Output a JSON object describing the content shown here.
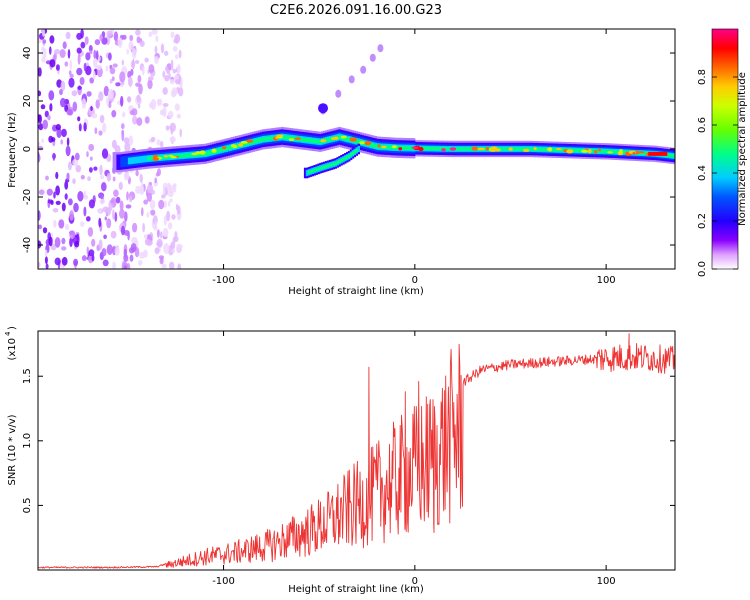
{
  "figure_title": "C2E6.2026.091.16.00.G23",
  "chart_data": [
    {
      "type": "heatmap",
      "title": "C2E6.2026.091.16.00.G23",
      "xlabel": "Height of straight line (km)",
      "ylabel": "Frequency (Hz)",
      "xlim": [
        -197,
        136
      ],
      "ylim": [
        -50,
        50
      ],
      "xticks": [
        -100,
        0,
        100
      ],
      "yticks": [
        -40,
        -20,
        0,
        20,
        40
      ],
      "xtick_labels": [
        "-100",
        "0",
        "100"
      ],
      "ytick_labels": [
        "-40",
        "-20",
        "0",
        "20",
        "40"
      ],
      "colorbar": {
        "label": "Normalized spectral amplitude",
        "range": [
          0,
          1
        ],
        "ticks": [
          0.0,
          0.2,
          0.4,
          0.6,
          0.8
        ],
        "tick_labels": [
          "0.0",
          "0.2",
          "0.4",
          "0.6",
          "0.8"
        ],
        "colormap": [
          "#ffffff",
          "#cc66ff",
          "#6600ff",
          "#0000ff",
          "#00ccff",
          "#00ff66",
          "#ccff00",
          "#ffcc00",
          "#ff6600",
          "#ff0000",
          "#ff00aa"
        ]
      },
      "main_trace": [
        {
          "x": -155,
          "y": -5.5
        },
        {
          "x": -140,
          "y": -4
        },
        {
          "x": -125,
          "y": -3
        },
        {
          "x": -110,
          "y": -2
        },
        {
          "x": -95,
          "y": 1
        },
        {
          "x": -80,
          "y": 4
        },
        {
          "x": -70,
          "y": 5
        },
        {
          "x": -60,
          "y": 4
        },
        {
          "x": -50,
          "y": 3
        },
        {
          "x": -40,
          "y": 5
        },
        {
          "x": -30,
          "y": 3
        },
        {
          "x": -20,
          "y": 1
        },
        {
          "x": -10,
          "y": 0.5
        },
        {
          "x": 0,
          "y": 0.3
        },
        {
          "x": 20,
          "y": 0
        },
        {
          "x": 60,
          "y": 0
        },
        {
          "x": 100,
          "y": -1
        },
        {
          "x": 125,
          "y": -2
        },
        {
          "x": 136,
          "y": -3
        }
      ],
      "descending_trace": [
        {
          "x": -57,
          "y": -10
        },
        {
          "x": -50,
          "y": -8
        },
        {
          "x": -42,
          "y": -6
        },
        {
          "x": -35,
          "y": -3
        },
        {
          "x": -30,
          "y": 0
        }
      ],
      "faint_branch": [
        {
          "x": -48,
          "y": 16
        },
        {
          "x": -40,
          "y": 23
        },
        {
          "x": -33,
          "y": 29
        },
        {
          "x": -27,
          "y": 33
        },
        {
          "x": -22,
          "y": 38
        },
        {
          "x": -18,
          "y": 42
        }
      ],
      "noise_region_x": [
        -197,
        -130
      ]
    },
    {
      "type": "line",
      "xlabel": "Height of straight line (km)",
      "ylabel": "SNR (10 * v/v)",
      "y_multiplier_label": "(x10",
      "y_multiplier_exponent": "4",
      "xlim": [
        -197,
        136
      ],
      "ylim": [
        0,
        18500
      ],
      "xticks": [
        -100,
        0,
        100
      ],
      "yticks": [
        5000,
        10000,
        15000
      ],
      "xtick_labels": [
        "-100",
        "0",
        "100"
      ],
      "ytick_labels": [
        "0.5",
        "1.0",
        "1.5"
      ],
      "line_color": "#ee3333",
      "envelope": [
        {
          "x": -197,
          "y": 200
        },
        {
          "x": -160,
          "y": 200
        },
        {
          "x": -135,
          "y": 250
        },
        {
          "x": -125,
          "y": 700
        },
        {
          "x": -110,
          "y": 1300
        },
        {
          "x": -95,
          "y": 1700
        },
        {
          "x": -85,
          "y": 2100
        },
        {
          "x": -75,
          "y": 2500
        },
        {
          "x": -65,
          "y": 3200
        },
        {
          "x": -55,
          "y": 3900
        },
        {
          "x": -45,
          "y": 4800
        },
        {
          "x": -35,
          "y": 6000
        },
        {
          "x": -25,
          "y": 7000
        },
        {
          "x": -15,
          "y": 8400
        },
        {
          "x": -5,
          "y": 9500
        },
        {
          "x": 5,
          "y": 10500
        },
        {
          "x": 12,
          "y": 11600
        },
        {
          "x": 18,
          "y": 13000
        },
        {
          "x": 25,
          "y": 14500
        },
        {
          "x": 35,
          "y": 15500
        },
        {
          "x": 50,
          "y": 15900
        },
        {
          "x": 70,
          "y": 16100
        },
        {
          "x": 90,
          "y": 16300
        },
        {
          "x": 100,
          "y": 16400
        },
        {
          "x": 115,
          "y": 16500
        },
        {
          "x": 125,
          "y": 16400
        },
        {
          "x": 136,
          "y": 16200
        }
      ],
      "spikes": [
        {
          "x": -24,
          "y": 15700
        },
        {
          "x": -5,
          "y": 13800
        },
        {
          "x": 2,
          "y": 14600
        },
        {
          "x": 10,
          "y": 2900
        },
        {
          "x": 112,
          "y": 18300
        }
      ]
    }
  ]
}
